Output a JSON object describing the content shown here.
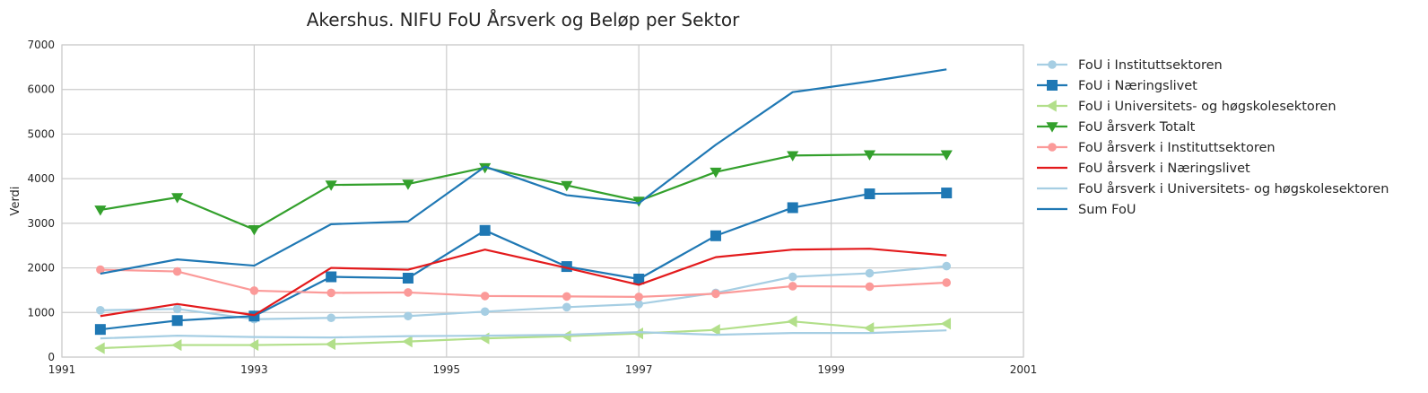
{
  "chart_data": {
    "type": "line",
    "title": "Akershus. NIFU FoU Årsverk og Beløp per Sektor",
    "xlabel": "",
    "ylabel": "Verdi",
    "xlim": [
      1991,
      2001
    ],
    "ylim": [
      0,
      7000
    ],
    "xticks": [
      "1991",
      "1993",
      "1995",
      "1997",
      "1999",
      "2001"
    ],
    "yticks": [
      "0",
      "1000",
      "2000",
      "3000",
      "4000",
      "5000",
      "6000",
      "7000"
    ],
    "grid": true,
    "legend_position": "right-outside",
    "x": [
      1991.4,
      1992.2,
      1993.0,
      1993.8,
      1994.6,
      1995.4,
      1996.25,
      1997.0,
      1997.8,
      1998.6,
      1999.4,
      2000.2
    ],
    "series": [
      {
        "name": "FoU i Instituttsektoren",
        "color": "#a6cee3",
        "marker": "circle",
        "values": [
          1050,
          1080,
          850,
          880,
          920,
          1020,
          1120,
          1190,
          1440,
          1800,
          1880,
          2040
        ]
      },
      {
        "name": "FoU i Næringslivet",
        "color": "#1f78b4",
        "marker": "square",
        "values": [
          620,
          820,
          920,
          1800,
          1770,
          2840,
          2030,
          1750,
          2720,
          3350,
          3660,
          3680
        ]
      },
      {
        "name": "FoU i Universitets- og høgskolesektoren",
        "color": "#b2df8a",
        "marker": "triangle-left",
        "values": [
          200,
          270,
          270,
          290,
          350,
          420,
          470,
          530,
          610,
          800,
          650,
          750
        ]
      },
      {
        "name": "FoU årsverk Totalt",
        "color": "#33a02c",
        "marker": "triangle-down",
        "values": [
          3300,
          3580,
          2860,
          3860,
          3880,
          4250,
          3850,
          3500,
          4150,
          4520,
          4540,
          4540
        ]
      },
      {
        "name": "FoU årsverk i Instituttsektoren",
        "color": "#fb9a99",
        "marker": "circle",
        "values": [
          1960,
          1920,
          1490,
          1440,
          1450,
          1370,
          1360,
          1350,
          1420,
          1590,
          1580,
          1670
        ]
      },
      {
        "name": "FoU årsverk i Næringslivet",
        "color": "#e31a1c",
        "marker": "none",
        "values": [
          920,
          1190,
          940,
          2000,
          1960,
          2410,
          2000,
          1620,
          2240,
          2410,
          2430,
          2280
        ]
      },
      {
        "name": "FoU årsverk i Universitets- og høgskolesektoren",
        "color": "#a6cee3",
        "marker": "none",
        "values": [
          420,
          480,
          450,
          440,
          470,
          480,
          500,
          560,
          500,
          540,
          540,
          600
        ]
      },
      {
        "name": "Sum FoU",
        "color": "#1f78b4",
        "marker": "none",
        "values": [
          1870,
          2190,
          2050,
          2980,
          3040,
          4270,
          3630,
          3450,
          4760,
          5940,
          6180,
          6450
        ]
      }
    ]
  }
}
